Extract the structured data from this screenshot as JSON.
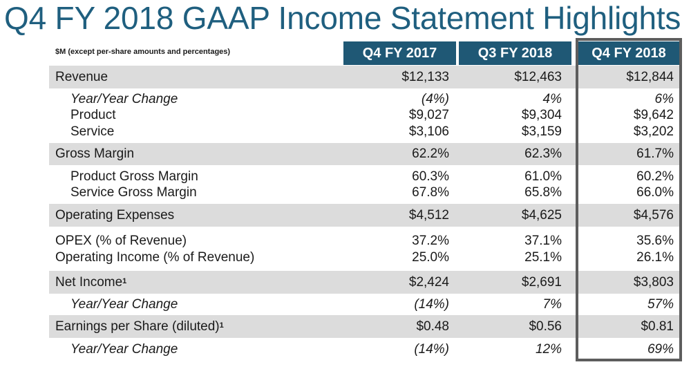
{
  "title": "Q4 FY 2018 GAAP Income Statement Highlights",
  "units_note": "$M (except per-share amounts and percentages)",
  "columns": [
    "Q4 FY 2017",
    "Q3 FY 2018",
    "Q4 FY 2018"
  ],
  "rows": [
    {
      "label": "Revenue",
      "sup": "",
      "values": [
        "$12,133",
        "$12,463",
        "$12,844"
      ]
    },
    {
      "label": "Year/Year Change",
      "sup": "",
      "values": [
        "(4%)",
        "4%",
        "6%"
      ]
    },
    {
      "label": "Product",
      "sup": "",
      "values": [
        "$9,027",
        "$9,304",
        "$9,642"
      ]
    },
    {
      "label": "Service",
      "sup": "",
      "values": [
        "$3,106",
        "$3,159",
        "$3,202"
      ]
    },
    {
      "label": "Gross Margin",
      "sup": "",
      "values": [
        "62.2%",
        "62.3%",
        "61.7%"
      ]
    },
    {
      "label": "Product Gross Margin",
      "sup": "",
      "values": [
        "60.3%",
        "61.0%",
        "60.2%"
      ]
    },
    {
      "label": "Service Gross Margin",
      "sup": "",
      "values": [
        "67.8%",
        "65.8%",
        "66.0%"
      ]
    },
    {
      "label": "Operating Expenses",
      "sup": "",
      "values": [
        "$4,512",
        "$4,625",
        "$4,576"
      ]
    },
    {
      "label": "OPEX (% of Revenue)",
      "sup": "",
      "values": [
        "37.2%",
        "37.1%",
        "35.6%"
      ]
    },
    {
      "label": "Operating Income (% of Revenue)",
      "sup": "",
      "values": [
        "25.0%",
        "25.1%",
        "26.1%"
      ]
    },
    {
      "label": "Net Income",
      "sup": "1",
      "values": [
        "$2,424",
        "$2,691",
        "$3,803"
      ]
    },
    {
      "label": "Year/Year Change",
      "sup": "",
      "values": [
        "(14%)",
        "7%",
        "57%"
      ]
    },
    {
      "label": "Earnings per Share (diluted)",
      "sup": "1",
      "values": [
        "$0.48",
        "$0.56",
        "$0.81"
      ]
    },
    {
      "label": "Year/Year Change",
      "sup": "",
      "values": [
        "(14%)",
        "12%",
        "69%"
      ]
    }
  ],
  "colors": {
    "title": "#1f5f7f",
    "header_bg": "#1f5875",
    "band": "#dcdcdc",
    "highlight_border": "#5d5d5d"
  }
}
